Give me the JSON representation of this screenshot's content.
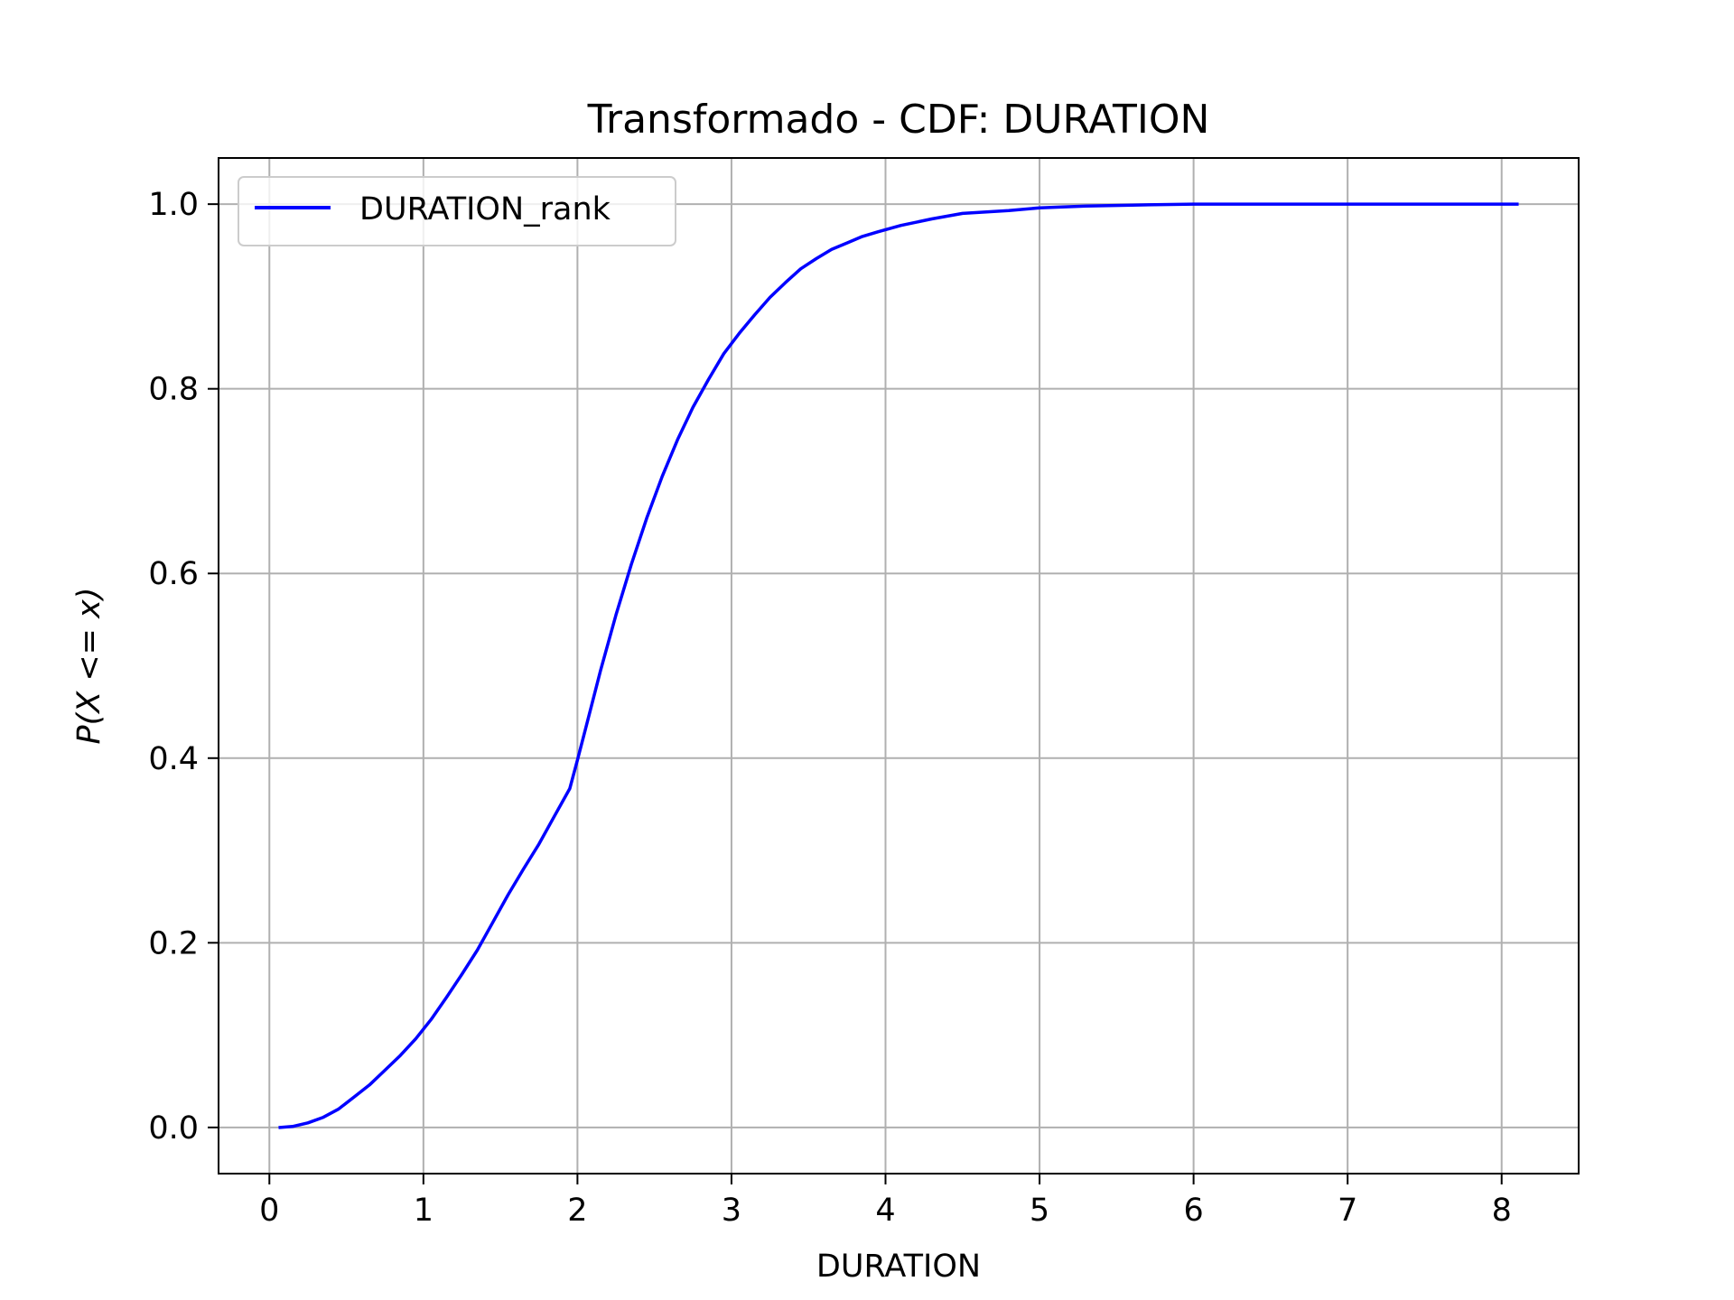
{
  "chart_data": {
    "type": "line",
    "title": "Transformado - CDF: DURATION",
    "xlabel": "DURATION",
    "ylabel": "P(X <= x)",
    "xlim": [
      -0.33,
      8.5
    ],
    "ylim": [
      -0.05,
      1.05
    ],
    "xticks": [
      0,
      1,
      2,
      3,
      4,
      5,
      6,
      7,
      8
    ],
    "xtick_labels": [
      "0",
      "1",
      "2",
      "3",
      "4",
      "5",
      "6",
      "7",
      "8"
    ],
    "yticks": [
      0.0,
      0.2,
      0.4,
      0.6,
      0.8,
      1.0
    ],
    "ytick_labels": [
      "0.0",
      "0.2",
      "0.4",
      "0.6",
      "0.8",
      "1.0"
    ],
    "grid": true,
    "legend_position": "upper-left",
    "series": [
      {
        "name": "DURATION_rank",
        "color": "#0000ff",
        "x": [
          0.07,
          0.15,
          0.25,
          0.35,
          0.45,
          0.55,
          0.65,
          0.75,
          0.85,
          0.95,
          1.05,
          1.15,
          1.25,
          1.35,
          1.45,
          1.55,
          1.65,
          1.75,
          1.85,
          1.95,
          2.0,
          2.05,
          2.15,
          2.25,
          2.35,
          2.45,
          2.55,
          2.65,
          2.75,
          2.85,
          2.95,
          3.05,
          3.15,
          3.25,
          3.35,
          3.45,
          3.55,
          3.65,
          3.75,
          3.85,
          3.95,
          4.1,
          4.3,
          4.5,
          4.8,
          5.0,
          5.3,
          5.6,
          6.0,
          6.5,
          7.0,
          7.5,
          8.1
        ],
        "y": [
          0.0,
          0.001,
          0.005,
          0.011,
          0.02,
          0.033,
          0.046,
          0.062,
          0.078,
          0.096,
          0.117,
          0.141,
          0.166,
          0.192,
          0.222,
          0.252,
          0.28,
          0.307,
          0.337,
          0.367,
          0.398,
          0.43,
          0.495,
          0.555,
          0.61,
          0.66,
          0.705,
          0.745,
          0.78,
          0.81,
          0.838,
          0.86,
          0.88,
          0.899,
          0.915,
          0.93,
          0.941,
          0.951,
          0.958,
          0.965,
          0.97,
          0.977,
          0.984,
          0.99,
          0.993,
          0.996,
          0.998,
          0.999,
          1.0,
          1.0,
          1.0,
          1.0,
          1.0
        ]
      }
    ]
  }
}
